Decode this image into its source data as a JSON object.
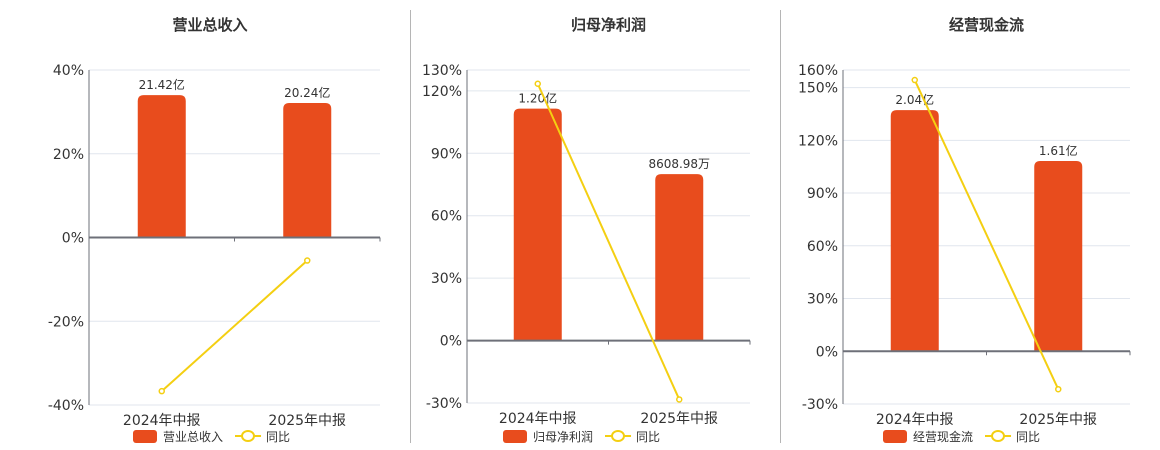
{
  "colors": {
    "bar": "#e84c1d",
    "line": "#f4cf12",
    "grid": "#e1e6ee",
    "axis": "#6e7079",
    "divider": "#b5b5b5"
  },
  "legend": {
    "line_label": "同比"
  },
  "chart_data": [
    {
      "type": "bar",
      "title": "营业总收入",
      "categories": [
        "2024年中报",
        "2025年中报"
      ],
      "series": [
        {
          "name": "营业总收入",
          "type": "bar",
          "values": [
            21.42,
            20.24
          ],
          "unit": "亿",
          "labels": [
            "21.42亿",
            "20.24亿"
          ]
        },
        {
          "name": "同比",
          "type": "line",
          "values": [
            -36.7,
            -5.5
          ],
          "unit": "%"
        }
      ],
      "yaxis": {
        "ticks": [
          40,
          20,
          0,
          -20,
          -40
        ],
        "tick_labels": [
          "40%",
          "20%",
          "0%",
          "-20%",
          "-40%"
        ],
        "ylim": [
          -40,
          40
        ]
      },
      "bar_scale_max": 25.2,
      "grid": true,
      "legend_position": "bottom"
    },
    {
      "type": "bar",
      "title": "归母净利润",
      "categories": [
        "2024年中报",
        "2025年中报"
      ],
      "series": [
        {
          "name": "归母净利润",
          "type": "bar",
          "values": [
            12000,
            8608.98
          ],
          "unit": "万",
          "labels": [
            "1.20亿",
            "8608.98万"
          ]
        },
        {
          "name": "同比",
          "type": "line",
          "values": [
            123.4,
            -28.3
          ],
          "unit": "%"
        }
      ],
      "yaxis": {
        "ticks": [
          130,
          120,
          90,
          60,
          30,
          0,
          -30
        ],
        "tick_labels": [
          "130%",
          "120%",
          "90%",
          "60%",
          "30%",
          "0%",
          "-30%"
        ],
        "ylim": [
          -30,
          130
        ]
      },
      "bar_scale_max": 14000,
      "grid": true,
      "legend_position": "bottom"
    },
    {
      "type": "bar",
      "title": "经营现金流",
      "categories": [
        "2024年中报",
        "2025年中报"
      ],
      "series": [
        {
          "name": "经营现金流",
          "type": "bar",
          "values": [
            2.04,
            1.61
          ],
          "unit": "亿",
          "labels": [
            "2.04亿",
            "1.61亿"
          ]
        },
        {
          "name": "同比",
          "type": "line",
          "values": [
            154.3,
            -21.6
          ],
          "unit": "%"
        }
      ],
      "yaxis": {
        "ticks": [
          160,
          150,
          120,
          90,
          60,
          30,
          0,
          -30
        ],
        "tick_labels": [
          "160%",
          "150%",
          "120%",
          "90%",
          "60%",
          "30%",
          "0%",
          "-30%"
        ],
        "ylim": [
          -30,
          160
        ]
      },
      "bar_scale_max": 2.38,
      "grid": true,
      "legend_position": "bottom"
    }
  ]
}
